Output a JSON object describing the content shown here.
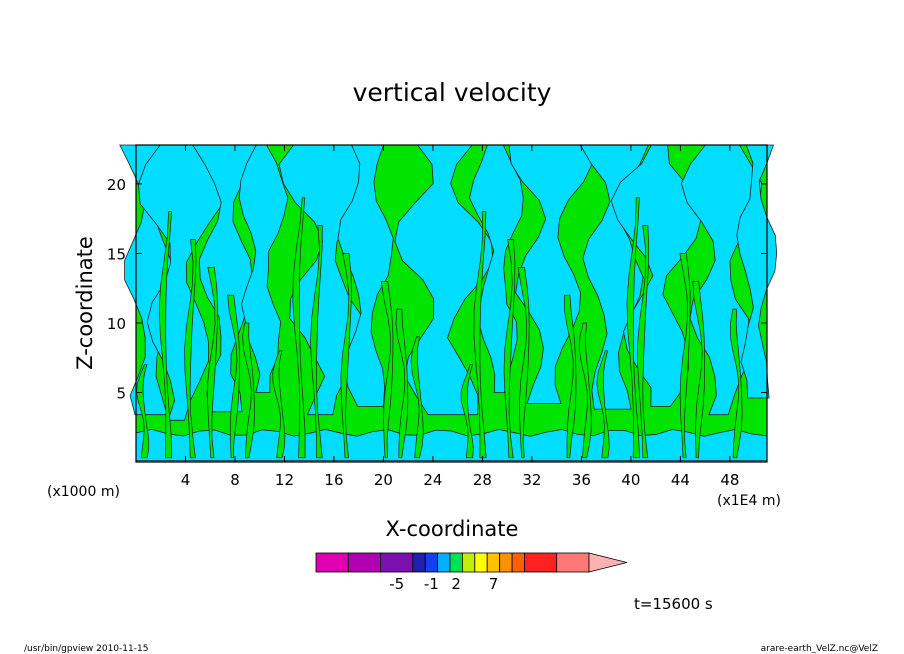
{
  "chart_data": {
    "type": "contour",
    "title": "vertical velocity",
    "xlabel": "X-coordinate",
    "ylabel": "Z-coordinate",
    "x_unit_left": "(x1000 m)",
    "x_unit_right": "(x1E4 m)",
    "xlim": [
      0,
      51
    ],
    "ylim": [
      0,
      22.8
    ],
    "x_ticks": [
      4,
      8,
      12,
      16,
      20,
      24,
      28,
      32,
      36,
      40,
      44,
      48
    ],
    "y_ticks": [
      5,
      10,
      15,
      20
    ],
    "time_label": "t=15600 s",
    "colorbar": {
      "colors": [
        "#e000b0",
        "#b000b0",
        "#7a10b0",
        "#2020b0",
        "#1040f0",
        "#00b0ff",
        "#00e050",
        "#c0f000",
        "#ffff00",
        "#ffc000",
        "#ff9000",
        "#ff6000",
        "#ff2020",
        "#ff7878"
      ],
      "extend_color": "#ffb0b0",
      "tick_labels": [
        {
          "label": "-5",
          "index": 2.5
        },
        {
          "label": "-1",
          "index": 4.5
        },
        {
          "label": "2",
          "index": 6.5
        },
        {
          "label": "7",
          "index": 9.5
        }
      ]
    },
    "field_colors": {
      "downdraft": "#00ddff",
      "updraft": "#00e400"
    },
    "grid": false
  },
  "footer": {
    "left": "/usr/bin/gpview   2010-11-15",
    "right": "arare-earth_VelZ.nc@VelZ"
  }
}
